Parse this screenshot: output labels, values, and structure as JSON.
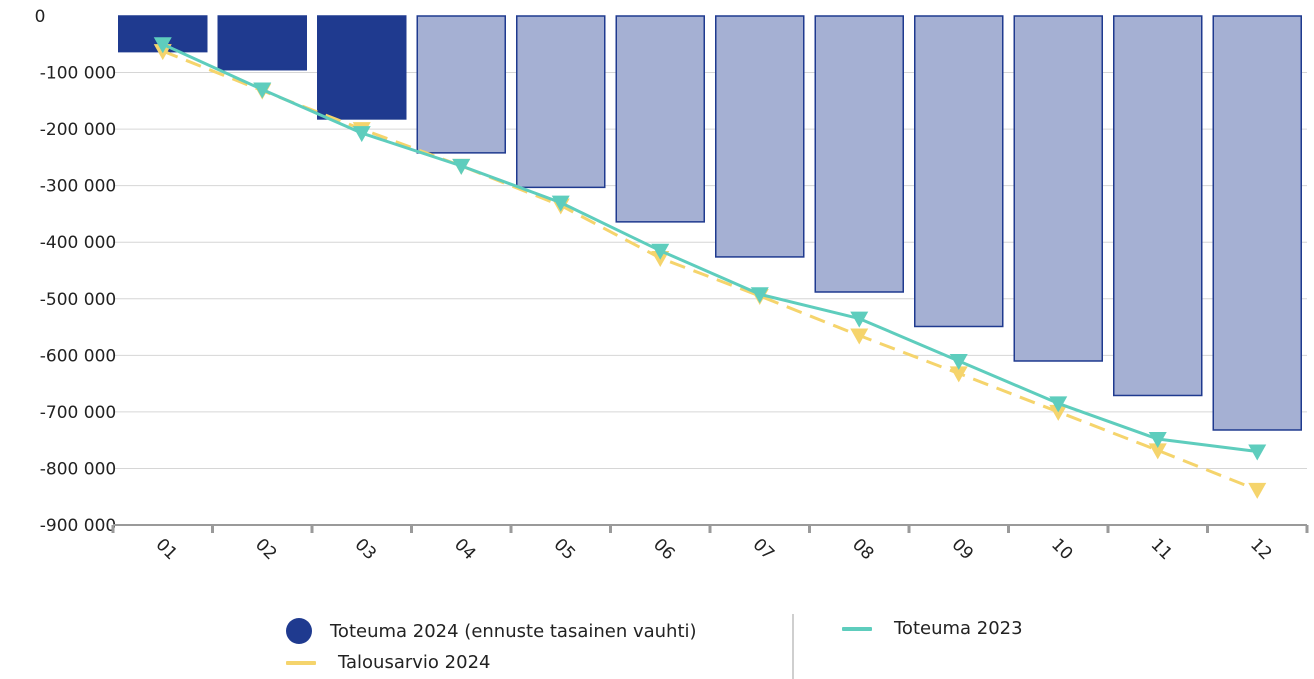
{
  "chart_data": {
    "type": "bar",
    "categories": [
      "01",
      "02",
      "03",
      "04",
      "05",
      "06",
      "07",
      "08",
      "09",
      "10",
      "11",
      "12"
    ],
    "ylim": [
      -900000,
      0
    ],
    "y_ticks": [
      0,
      -100000,
      -200000,
      -300000,
      -400000,
      -500000,
      -600000,
      -700000,
      -800000,
      -900000
    ],
    "y_tick_labels": [
      "0",
      "-100 000",
      "-200 000",
      "-300 000",
      "-400 000",
      "-500 000",
      "-600 000",
      "-700 000",
      "-800 000",
      "-900 000"
    ],
    "grid": true,
    "legend_position": "bottom",
    "series": [
      {
        "name": "Toteuma 2024 (ennuste tasainen vauhti)",
        "kind": "bar",
        "values": [
          -63000,
          -95000,
          -182000,
          -242000,
          -303000,
          -364000,
          -426000,
          -488000,
          -549000,
          -610000,
          -671000,
          -732000
        ],
        "actual_months": 3,
        "color": "#1f3a8f",
        "forecast_color": "#a5b0d3"
      },
      {
        "name": "Toteuma 2023",
        "kind": "line",
        "values": [
          -50000,
          -130000,
          -207000,
          -265000,
          -330000,
          -415000,
          -492000,
          -535000,
          -610000,
          -685000,
          -748000,
          -770000
        ],
        "color": "#5ecdbd"
      },
      {
        "name": "Talousarvio 2024",
        "kind": "dashed-line",
        "values": [
          -62000,
          -132000,
          -200000,
          -265000,
          -335000,
          -428000,
          -495000,
          -565000,
          -632000,
          -700000,
          -768000,
          -838000
        ],
        "color": "#f5d46c"
      }
    ]
  }
}
